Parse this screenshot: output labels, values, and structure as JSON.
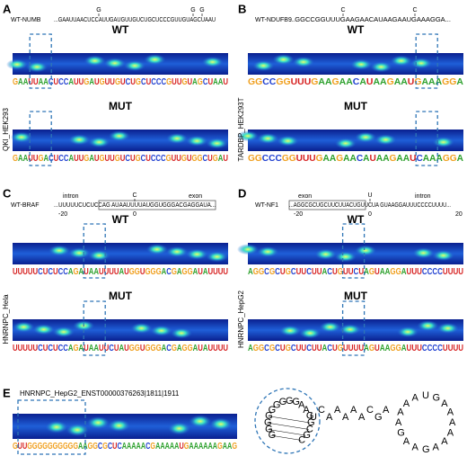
{
  "panels": [
    {
      "label": "A",
      "sequence_name": "WT-NUMB",
      "sequence": "...GAAUUAACUCCAUUGAUGUUGUCUGCUCCCGUUGUAGCUAAU",
      "mutations": [
        "G",
        "G",
        "G"
      ],
      "wt_title": "WT",
      "mut_title": "MUT",
      "model": "QKI_HEK293",
      "wt_track": "GAAUUAACUCCAUUGAUGUUGUCUGCUCCCGUUGUAGCUAAU",
      "mut_track": "GAAUUGACUCCAUUGAUGUUGUCUGCUCCCGUUGUGGCUGAU"
    },
    {
      "label": "B",
      "sequence_name": "WT-NDUFB9",
      "sequence": "...GGCCGGUUUGAAGAACAUAAGAAUGAAAGGA...",
      "mutations": [
        "C",
        "C"
      ],
      "wt_title": "WT",
      "mut_title": "MUT",
      "model": "TARDBP_HEK293T",
      "wt_track": "GGCCGGUUUGAAGAACAUAAGAAUGAAAGGA",
      "mut_track": "GGCCCGGUUUGAAGAACAUAAGAAUCAAAGGA"
    },
    {
      "label": "C",
      "sequence_name": "WT-BRAF",
      "sequence": "...UUUUUCUCUCCAG AUAAUUUUAUGGUGGGACGAGGAUA...",
      "mutations": [
        "C"
      ],
      "left_region": "intron",
      "right_region": "exon",
      "left_pos": "-20",
      "mid_pos": "0",
      "wt_title": "WT",
      "mut_title": "MUT",
      "model": "HNRNPC_Hela",
      "wt_track": "UUUUUCUCUCCAGAUAAUUUUAUGGUGGGACGAGGAUAUUUU",
      "mut_track": "UUUUUCUCUCCAGAUAAUUCUAUGGUGGGACGAGGAUAUUUU"
    },
    {
      "label": "D",
      "sequence_name": "WT-NF1",
      "sequence": "...AGGCGCUGCUUCUUACUGUUCUA GUAAGGAUUUCCCCUUUU...",
      "mutations": [
        "U"
      ],
      "left_region": "exon",
      "right_region": "intron",
      "left_pos": "-20",
      "mid_pos": "0",
      "right_pos": "20",
      "wt_title": "WT",
      "mut_title": "MUT",
      "model": "HNRNPC_HepG2",
      "wt_track": "AGGCGCUGCUUCUUACUGUUCUAGUAAGGAUUUCCCCUUUU",
      "mut_track": "AGGCGCUGCUUCUUACUGUUUUAGUAAGGAUUUCCCCUUUU"
    }
  ],
  "panel_e": {
    "label": "E",
    "title": "HNRNPC_HepG2_ENST00000376263|1811|1911",
    "track": "GUUGGGGGGGGGGAAGGCGCUCAAAAACGAAAAAUGAAAAAAGAAG",
    "structure": "GGGGGGGGGAAGGCGCUCAAAAACGAAAAAUGAAAAAAGAAG"
  }
}
